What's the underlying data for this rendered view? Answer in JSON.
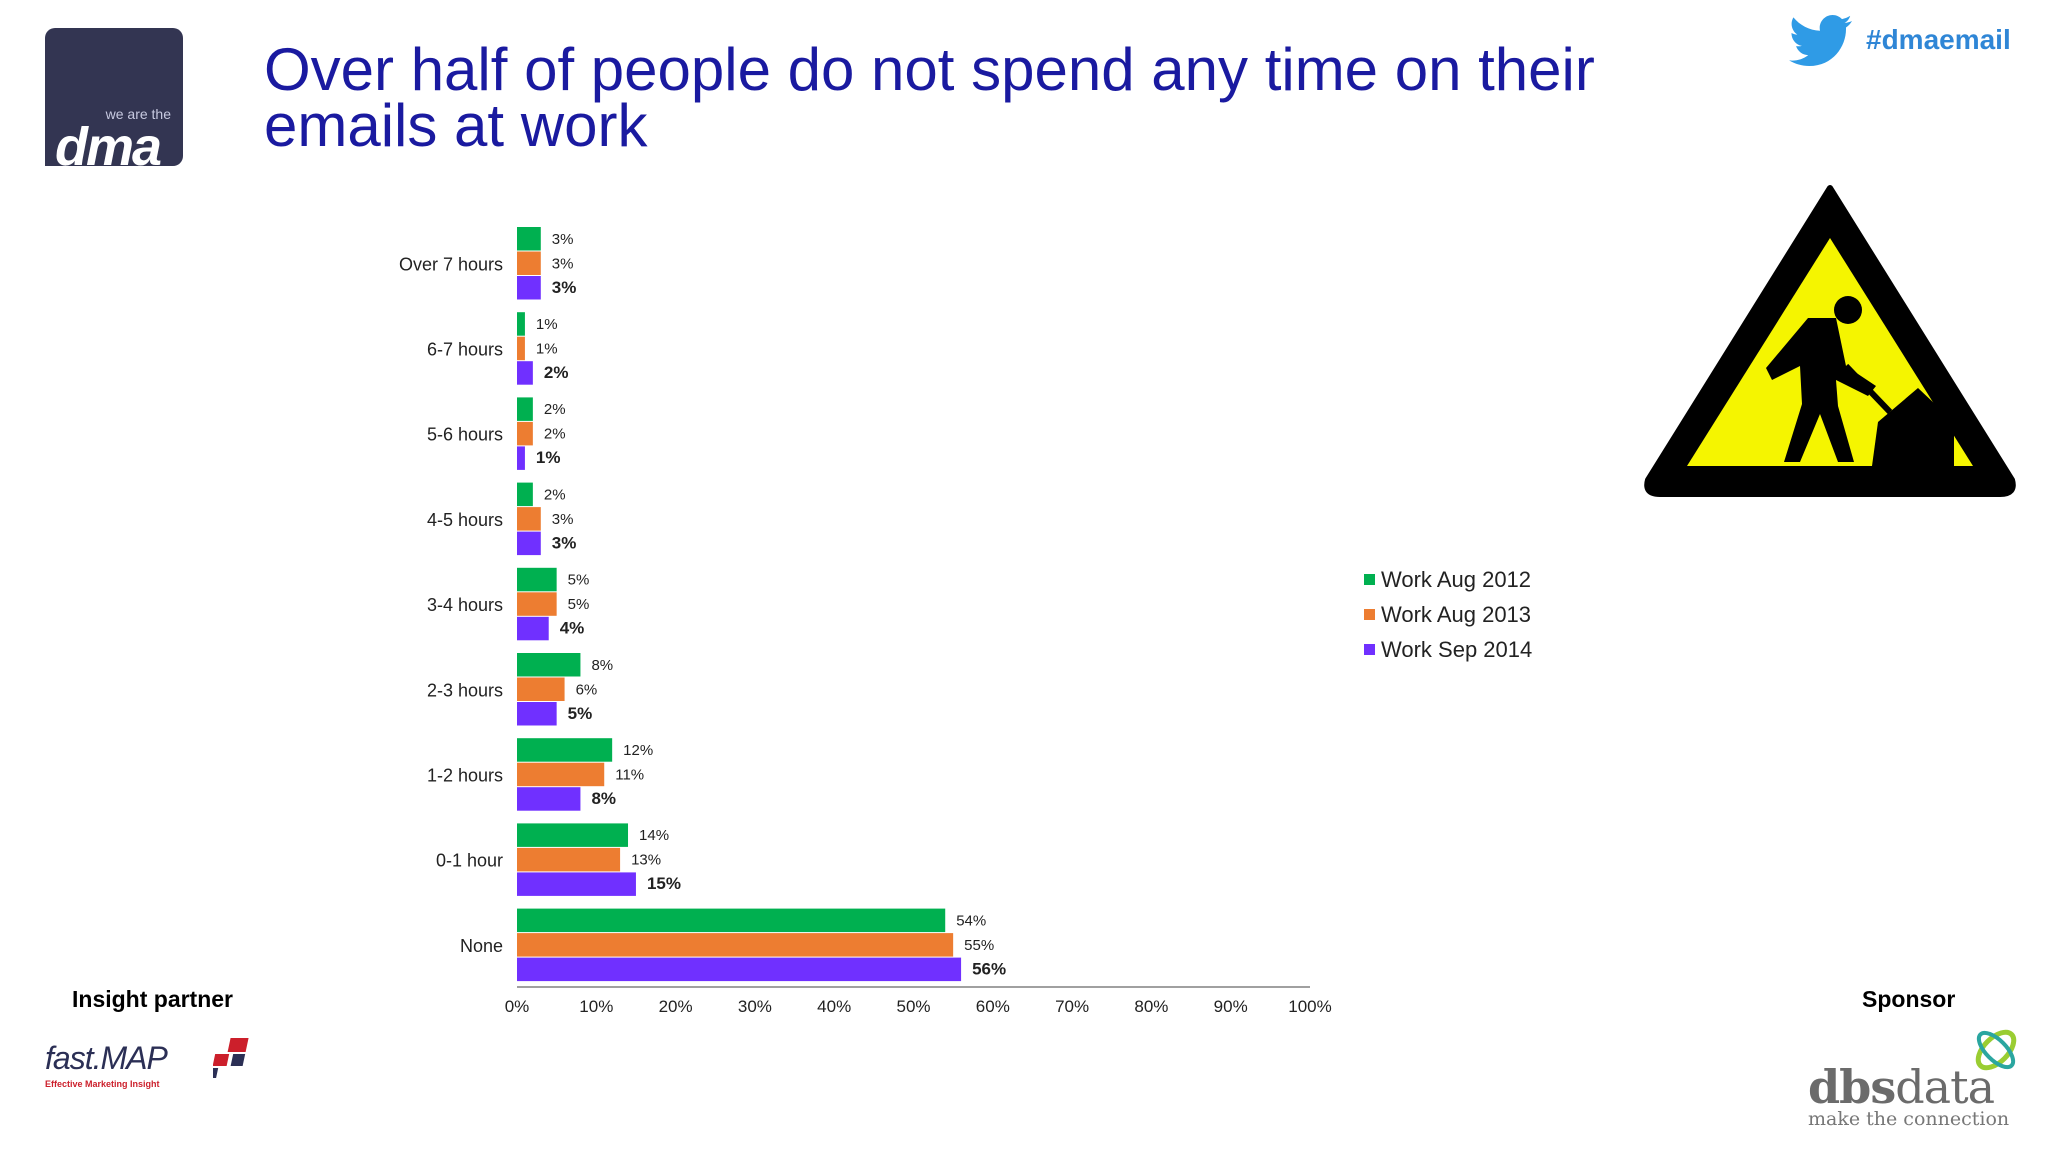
{
  "header": {
    "title_line1": "Over half of people do not spend any time on their",
    "title_line2": "emails at work",
    "hashtag": "#dmaemail",
    "logo_small": "we are the",
    "logo_big": "dma"
  },
  "footer": {
    "insight_label": "Insight partner",
    "sponsor_label": "Sponsor",
    "fastmap_name": "fast.MAP",
    "fastmap_tagline": "Effective Marketing Insight",
    "dbs_name_bold": "dbs",
    "dbs_name_rest": "data",
    "dbs_tagline": "make the connection"
  },
  "chart_data": {
    "type": "bar",
    "orientation": "horizontal",
    "categories": [
      "Over 7 hours",
      "6-7 hours",
      "5-6 hours",
      "4-5 hours",
      "3-4 hours",
      "2-3 hours",
      "1-2 hours",
      "0-1 hour",
      "None"
    ],
    "series": [
      {
        "name": "Work Aug 2012",
        "color": "#00b050",
        "values": [
          3,
          1,
          2,
          2,
          5,
          8,
          12,
          14,
          54
        ]
      },
      {
        "name": "Work Aug 2013",
        "color": "#ed7d31",
        "values": [
          3,
          1,
          2,
          3,
          5,
          6,
          11,
          13,
          55
        ]
      },
      {
        "name": "Work Sep 2014",
        "color": "#7030ff",
        "values": [
          3,
          2,
          1,
          3,
          4,
          5,
          8,
          15,
          56
        ]
      }
    ],
    "x_ticks": [
      "0%",
      "10%",
      "20%",
      "30%",
      "40%",
      "50%",
      "60%",
      "70%",
      "80%",
      "90%",
      "100%"
    ],
    "xlim": [
      0,
      100
    ],
    "legend_position": "right",
    "grid": false
  }
}
